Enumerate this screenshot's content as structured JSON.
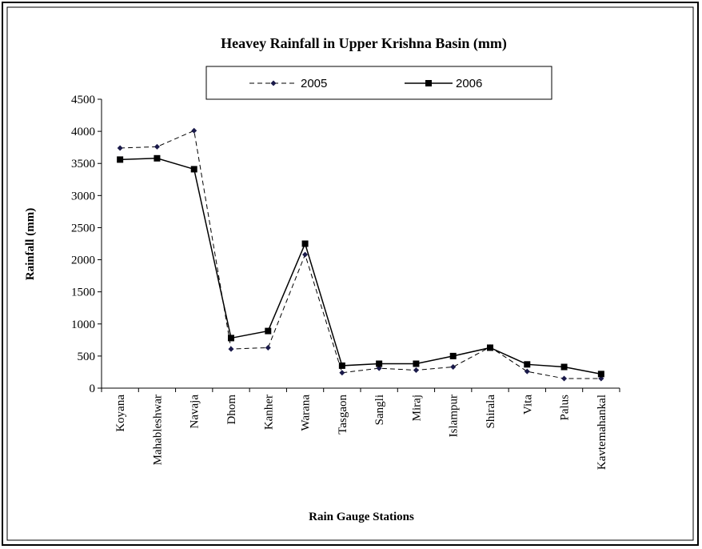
{
  "chart_data": {
    "type": "line",
    "title": "Heavey Rainfall in Upper Krishna Basin (mm)",
    "x_label": "Rain Gauge Stations",
    "y_label": "Rainfall (mm)",
    "categories": [
      "Koyana",
      "Mahableshwar",
      "Navaja",
      "Dhom",
      "Kanher",
      "Warana",
      "Tasgaon",
      "Sangli",
      "Miraj",
      "Islampur",
      "Shirala",
      "Vita",
      "Palus",
      "Kavtemahankal"
    ],
    "series": [
      {
        "name": "2005",
        "color": "#000000",
        "values": [
          3740,
          3760,
          4010,
          610,
          630,
          2080,
          240,
          310,
          280,
          330,
          640,
          260,
          150,
          150
        ]
      },
      {
        "name": "2006",
        "color": "#000000",
        "values": [
          3560,
          3580,
          3410,
          780,
          890,
          2250,
          350,
          380,
          380,
          500,
          630,
          370,
          330,
          220
        ]
      }
    ],
    "ylim": [
      0,
      4500
    ],
    "yticks": [
      0,
      500,
      1000,
      1500,
      2000,
      2500,
      3000,
      3500,
      4000,
      4500
    ]
  }
}
